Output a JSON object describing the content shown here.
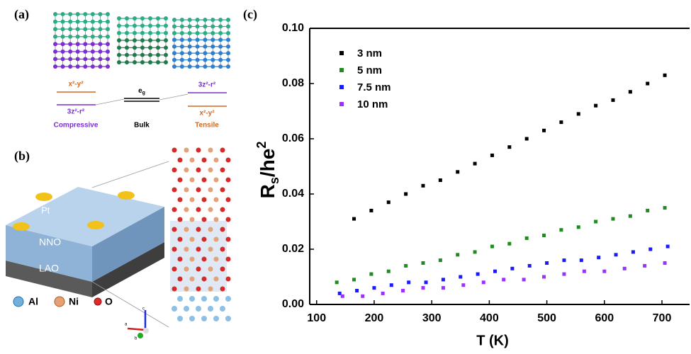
{
  "panel_a": {
    "label": "(a)",
    "compressive": {
      "upper": "x²-y²",
      "lower": "3z²-r²",
      "name": "Compressive"
    },
    "bulk": {
      "level": "e",
      "level_sub": "g",
      "name": "Bulk"
    },
    "tensile": {
      "upper": "3z²-r²",
      "lower": "x²-y²",
      "name": "Tensile"
    }
  },
  "panel_b": {
    "label": "(b)",
    "layers": [
      "Pt",
      "NNO",
      "LAO"
    ],
    "atoms": [
      "Al",
      "Ni",
      "O"
    ],
    "axes": [
      "a",
      "b",
      "c"
    ]
  },
  "chart_data": {
    "type": "scatter",
    "label": "(c)",
    "x_label": "T (K)",
    "y_label_parts": [
      "R",
      "s",
      "/he",
      "2"
    ],
    "xlim": [
      88,
      748
    ],
    "xticks": [
      100,
      200,
      300,
      400,
      500,
      600,
      700
    ],
    "ylim": [
      0,
      0.1
    ],
    "yticks": [
      {
        "value": 0,
        "label": "0.00"
      },
      {
        "value": 0.02,
        "label": "0.02"
      },
      {
        "value": 0.04,
        "label": "0.04"
      },
      {
        "value": 0.06,
        "label": "0.06"
      },
      {
        "value": 0.08,
        "label": "0.08"
      },
      {
        "value": 0.1,
        "label": "0.10"
      }
    ],
    "legend": "upper left",
    "series": [
      {
        "name": "3 nm",
        "color": "#000000",
        "x": [
          165,
          195,
          225,
          255,
          285,
          315,
          345,
          375,
          405,
          435,
          465,
          495,
          525,
          555,
          585,
          615,
          645,
          675,
          705
        ],
        "values": [
          0.031,
          0.034,
          0.037,
          0.04,
          0.043,
          0.045,
          0.048,
          0.051,
          0.054,
          0.057,
          0.06,
          0.063,
          0.066,
          0.069,
          0.072,
          0.074,
          0.077,
          0.08,
          0.083
        ]
      },
      {
        "name": "5 nm",
        "color": "#1e8c1e",
        "x": [
          135,
          165,
          195,
          225,
          255,
          285,
          315,
          345,
          375,
          405,
          435,
          465,
          495,
          525,
          555,
          585,
          615,
          645,
          675,
          705
        ],
        "values": [
          0.008,
          0.009,
          0.011,
          0.012,
          0.014,
          0.015,
          0.016,
          0.018,
          0.019,
          0.021,
          0.022,
          0.024,
          0.025,
          0.027,
          0.028,
          0.03,
          0.031,
          0.032,
          0.034,
          0.035
        ]
      },
      {
        "name": "7.5 nm",
        "color": "#1a1aff",
        "x": [
          140,
          170,
          200,
          230,
          260,
          290,
          320,
          350,
          380,
          410,
          440,
          470,
          500,
          530,
          560,
          590,
          620,
          650,
          680,
          710
        ],
        "values": [
          0.004,
          0.005,
          0.006,
          0.007,
          0.008,
          0.008,
          0.009,
          0.01,
          0.011,
          0.012,
          0.013,
          0.014,
          0.015,
          0.016,
          0.016,
          0.017,
          0.018,
          0.019,
          0.02,
          0.021
        ]
      },
      {
        "name": "10 nm",
        "color": "#9b30ff",
        "x": [
          145,
          180,
          215,
          250,
          285,
          320,
          355,
          390,
          425,
          460,
          495,
          530,
          565,
          600,
          635,
          670,
          705
        ],
        "values": [
          0.003,
          0.003,
          0.004,
          0.005,
          0.006,
          0.006,
          0.007,
          0.008,
          0.009,
          0.009,
          0.01,
          0.011,
          0.012,
          0.012,
          0.013,
          0.014,
          0.015
        ]
      }
    ]
  }
}
